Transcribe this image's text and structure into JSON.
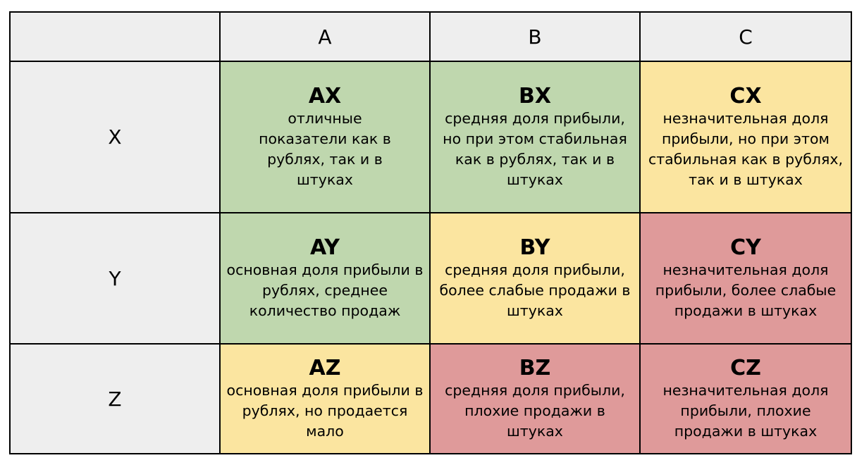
{
  "matrix": {
    "corner": "",
    "columns": [
      "A",
      "B",
      "C"
    ],
    "rows": [
      {
        "label": "X",
        "cells": [
          {
            "code": "AX",
            "description": "отличные показатели как в рублях, так и в штуках",
            "color": "#bfd7ae",
            "status": "green"
          },
          {
            "code": "BX",
            "description": "средняя доля прибыли, но при этом стабильная как в рублях, так и в штуках",
            "color": "#bfd7ae",
            "status": "green"
          },
          {
            "code": "CX",
            "description": "незначительная доля прибыли, но при этом стабильная как в рублях, так и в штуках",
            "color": "#fbe5a0",
            "status": "yellow"
          }
        ]
      },
      {
        "label": "Y",
        "cells": [
          {
            "code": "AY",
            "description": "основная доля прибыли в рублях, среднее количество продаж",
            "color": "#bfd7ae",
            "status": "green"
          },
          {
            "code": "BY",
            "description": "средняя доля прибыли, более слабые продажи в штуках",
            "color": "#fbe5a0",
            "status": "yellow"
          },
          {
            "code": "CY",
            "description": "незначительная доля прибыли, более слабые продажи в штуках",
            "color": "#df9a9a",
            "status": "red"
          }
        ]
      },
      {
        "label": "Z",
        "cells": [
          {
            "code": "AZ",
            "description": "основная доля прибыли в рублях, но продается мало",
            "color": "#fbe5a0",
            "status": "yellow"
          },
          {
            "code": "BZ",
            "description": "средняя доля прибыли, плохие продажи в штуках",
            "color": "#df9a9a",
            "status": "red"
          },
          {
            "code": "CZ",
            "description": "незначительная доля прибыли, плохие продажи в штуках",
            "color": "#df9a9a",
            "status": "red"
          }
        ]
      }
    ]
  },
  "colors": {
    "header_bg": "#eeeeee",
    "green": "#bfd7ae",
    "yellow": "#fbe5a0",
    "red": "#df9a9a",
    "border": "#000000"
  }
}
